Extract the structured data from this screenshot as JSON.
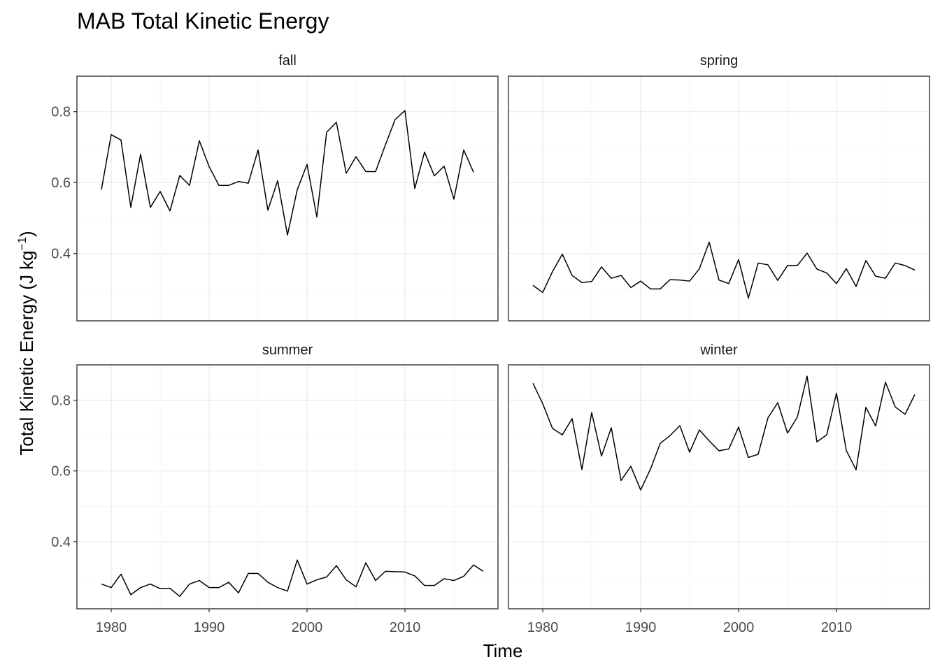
{
  "chart_data": {
    "type": "line",
    "title": "MAB Total Kinetic Energy",
    "xlabel": "Time",
    "ylabel": "Total Kinetic Energy (J kg",
    "ylabel_sup": "−1",
    "ylabel_close": ")",
    "xlim": [
      1976.5,
      2019.5
    ],
    "ylim": [
      0.21,
      0.9
    ],
    "x_ticks": [
      1980,
      1990,
      2000,
      2010
    ],
    "y_ticks": [
      0.4,
      0.6,
      0.8
    ],
    "y_tick_labels": [
      "0.4",
      "0.6",
      "0.8"
    ],
    "x_tick_labels": [
      "1980",
      "1990",
      "2000",
      "2010"
    ],
    "grid": true,
    "facets": [
      {
        "name": "fall",
        "x": [
          1979,
          1980,
          1981,
          1982,
          1983,
          1984,
          1985,
          1986,
          1987,
          1988,
          1989,
          1990,
          1991,
          1992,
          1993,
          1994,
          1995,
          1996,
          1997,
          1998,
          1999,
          2000,
          2001,
          2002,
          2003,
          2004,
          2005,
          2006,
          2007,
          2008,
          2009,
          2010,
          2011,
          2012,
          2013,
          2014,
          2015,
          2016,
          2017
        ],
        "values": [
          0.58,
          0.735,
          0.72,
          0.53,
          0.68,
          0.53,
          0.575,
          0.52,
          0.62,
          0.592,
          0.718,
          0.645,
          0.592,
          0.592,
          0.603,
          0.598,
          0.692,
          0.522,
          0.605,
          0.452,
          0.58,
          0.651,
          0.503,
          0.742,
          0.77,
          0.626,
          0.673,
          0.631,
          0.631,
          0.706,
          0.778,
          0.803,
          0.583,
          0.686,
          0.619,
          0.646,
          0.553,
          0.692,
          0.629
        ]
      },
      {
        "name": "spring",
        "x": [
          1979,
          1980,
          1981,
          1982,
          1983,
          1984,
          1985,
          1986,
          1987,
          1988,
          1989,
          1990,
          1991,
          1992,
          1993,
          1994,
          1995,
          1996,
          1997,
          1998,
          1999,
          2000,
          2001,
          2002,
          2003,
          2004,
          2005,
          2006,
          2007,
          2008,
          2009,
          2010,
          2011,
          2012,
          2013,
          2014,
          2015,
          2016,
          2017,
          2018
        ],
        "values": [
          0.31,
          0.29,
          0.349,
          0.398,
          0.338,
          0.318,
          0.321,
          0.362,
          0.33,
          0.338,
          0.304,
          0.322,
          0.3,
          0.3,
          0.326,
          0.325,
          0.322,
          0.357,
          0.432,
          0.325,
          0.315,
          0.383,
          0.274,
          0.373,
          0.368,
          0.324,
          0.366,
          0.366,
          0.401,
          0.356,
          0.345,
          0.315,
          0.357,
          0.307,
          0.38,
          0.336,
          0.33,
          0.373,
          0.366,
          0.353
        ]
      },
      {
        "name": "summer",
        "x": [
          1979,
          1980,
          1981,
          1982,
          1983,
          1984,
          1985,
          1986,
          1987,
          1988,
          1989,
          1990,
          1991,
          1992,
          1993,
          1994,
          1995,
          1996,
          1997,
          1998,
          1999,
          2000,
          2001,
          2002,
          2003,
          2004,
          2005,
          2006,
          2007,
          2008,
          2009,
          2010,
          2011,
          2012,
          2013,
          2014,
          2015,
          2016,
          2017,
          2018
        ],
        "values": [
          0.28,
          0.27,
          0.308,
          0.25,
          0.27,
          0.28,
          0.267,
          0.268,
          0.245,
          0.28,
          0.29,
          0.27,
          0.27,
          0.285,
          0.255,
          0.31,
          0.31,
          0.285,
          0.27,
          0.26,
          0.348,
          0.28,
          0.292,
          0.3,
          0.332,
          0.292,
          0.272,
          0.34,
          0.29,
          0.316,
          0.315,
          0.314,
          0.303,
          0.276,
          0.276,
          0.295,
          0.29,
          0.302,
          0.334,
          0.316
        ]
      },
      {
        "name": "winter",
        "x": [
          1979,
          1980,
          1981,
          1982,
          1983,
          1984,
          1985,
          1986,
          1987,
          1988,
          1989,
          1990,
          1991,
          1992,
          1993,
          1994,
          1995,
          1996,
          1997,
          1998,
          1999,
          2000,
          2001,
          2002,
          2003,
          2004,
          2005,
          2006,
          2007,
          2008,
          2009,
          2010,
          2011,
          2012,
          2013,
          2014,
          2015,
          2016,
          2017,
          2018
        ],
        "values": [
          0.848,
          0.79,
          0.72,
          0.702,
          0.748,
          0.604,
          0.765,
          0.642,
          0.722,
          0.573,
          0.613,
          0.546,
          0.605,
          0.678,
          0.7,
          0.728,
          0.653,
          0.716,
          0.685,
          0.657,
          0.662,
          0.724,
          0.638,
          0.647,
          0.75,
          0.793,
          0.707,
          0.752,
          0.868,
          0.682,
          0.702,
          0.82,
          0.658,
          0.603,
          0.78,
          0.727,
          0.851,
          0.781,
          0.76,
          0.816
        ]
      }
    ]
  }
}
